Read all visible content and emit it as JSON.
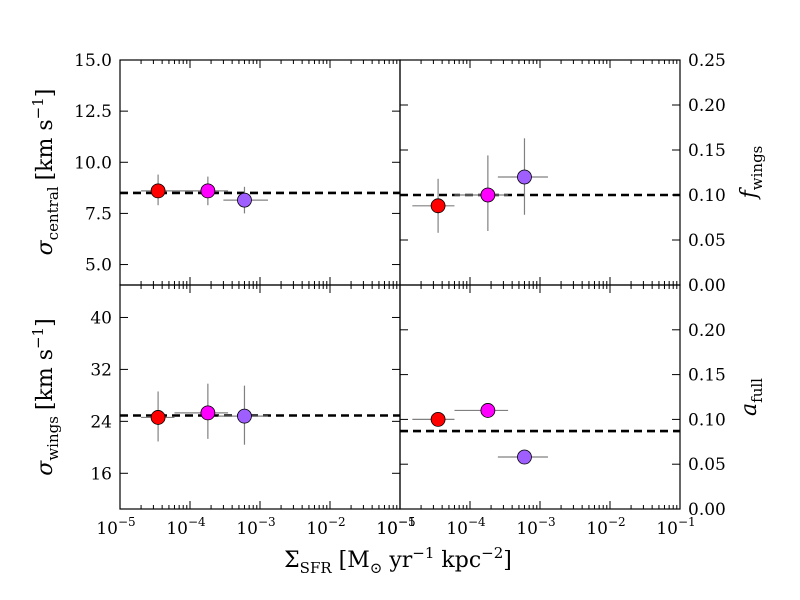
{
  "chart_data": {
    "type": "scatter",
    "shared_x": {
      "label_main": "Σ",
      "label_sub": "SFR",
      "label_rest": " [M",
      "label_sun": "⊙",
      "label_yr": " yr",
      "label_yr_exp": "−1",
      "label_kpc": " kpc",
      "label_kpc_exp": "−2",
      "label_close": "]",
      "xlim_log10": [
        -5,
        -1
      ],
      "tick_exponents": [
        "−5",
        "−4",
        "−3",
        "−2",
        "−1"
      ],
      "tick_base": "10",
      "scale": "log"
    },
    "panels": [
      {
        "id": "top-left",
        "ylabel_symbol": "σ",
        "ylabel_sub": "central",
        "ylabel_units": "[km s",
        "ylabel_units_exp": "−1",
        "ylabel_units_close": "]",
        "ylim": [
          4,
          15
        ],
        "yticks": [
          5.0,
          7.5,
          10.0,
          12.5,
          15.0
        ],
        "ytick_labels": [
          "5.0",
          "7.5",
          "10.0",
          "12.5",
          "15.0"
        ],
        "dashed_line": 8.5,
        "points": [
          {
            "x": 3.5e-05,
            "y": 8.6,
            "xerr": [
              2e-05,
              6e-05
            ],
            "yerr": [
              7.9,
              9.4
            ],
            "color": "#ff0000"
          },
          {
            "x": 0.00018,
            "y": 8.6,
            "xerr": [
              6e-05,
              0.00035
            ],
            "yerr": [
              7.9,
              9.3
            ],
            "color": "#ff00ff"
          },
          {
            "x": 0.0006,
            "y": 8.15,
            "xerr": [
              0.0003,
              0.0013
            ],
            "yerr": [
              7.5,
              8.8
            ],
            "color": "#9f5fff"
          }
        ]
      },
      {
        "id": "top-right",
        "ylabel_symbol": "f",
        "ylabel_sub": "wings",
        "ylim": [
          0,
          0.25
        ],
        "yticks": [
          0.0,
          0.05,
          0.1,
          0.15,
          0.2,
          0.25
        ],
        "ytick_labels": [
          "0.00",
          "0.05",
          "0.10",
          "0.15",
          "0.20",
          "0.25"
        ],
        "dashed_line": 0.1,
        "points": [
          {
            "x": 3.5e-05,
            "y": 0.088,
            "xerr": [
              1.5e-05,
              6e-05
            ],
            "yerr": [
              0.058,
              0.118
            ],
            "color": "#ff0000"
          },
          {
            "x": 0.00018,
            "y": 0.1,
            "xerr": [
              6e-05,
              0.00035
            ],
            "yerr": [
              0.06,
              0.144
            ],
            "color": "#ff00ff"
          },
          {
            "x": 0.0006,
            "y": 0.12,
            "xerr": [
              0.00025,
              0.0013
            ],
            "yerr": [
              0.078,
              0.163
            ],
            "color": "#9f5fff"
          }
        ]
      },
      {
        "id": "bottom-left",
        "ylabel_symbol": "σ",
        "ylabel_sub": "wings",
        "ylabel_units": "[km s",
        "ylabel_units_exp": "−1",
        "ylabel_units_close": "]",
        "ylim": [
          10.5,
          45
        ],
        "yticks": [
          16,
          24,
          32,
          40
        ],
        "ytick_labels": [
          "16",
          "24",
          "32",
          "40"
        ],
        "dashed_line": 24.9,
        "points": [
          {
            "x": 3.5e-05,
            "y": 24.6,
            "xerr": [
              2e-05,
              6e-05
            ],
            "yerr": [
              20.9,
              28.6
            ],
            "color": "#ff0000"
          },
          {
            "x": 0.00018,
            "y": 25.3,
            "xerr": [
              6e-05,
              0.00035
            ],
            "yerr": [
              21.3,
              29.8
            ],
            "color": "#ff00ff"
          },
          {
            "x": 0.0006,
            "y": 24.8,
            "xerr": [
              0.00025,
              0.0013
            ],
            "yerr": [
              20.4,
              29.5
            ],
            "color": "#9f5fff"
          }
        ]
      },
      {
        "id": "bottom-right",
        "ylabel_symbol": "a",
        "ylabel_sub": "full",
        "ylim": [
          0,
          0.25
        ],
        "yticks": [
          0.0,
          0.05,
          0.1,
          0.15,
          0.2
        ],
        "ytick_labels": [
          "0.00",
          "0.05",
          "0.10",
          "0.15",
          "0.20"
        ],
        "dashed_line": 0.087,
        "points": [
          {
            "x": 3.5e-05,
            "y": 0.1,
            "xerr": [
              1.5e-05,
              6e-05
            ],
            "color": "#ff0000"
          },
          {
            "x": 0.00018,
            "y": 0.11,
            "xerr": [
              6e-05,
              0.00035
            ],
            "color": "#ff00ff"
          },
          {
            "x": 0.0006,
            "y": 0.058,
            "xerr": [
              0.00025,
              0.0013
            ],
            "color": "#9f5fff"
          }
        ]
      }
    ]
  }
}
